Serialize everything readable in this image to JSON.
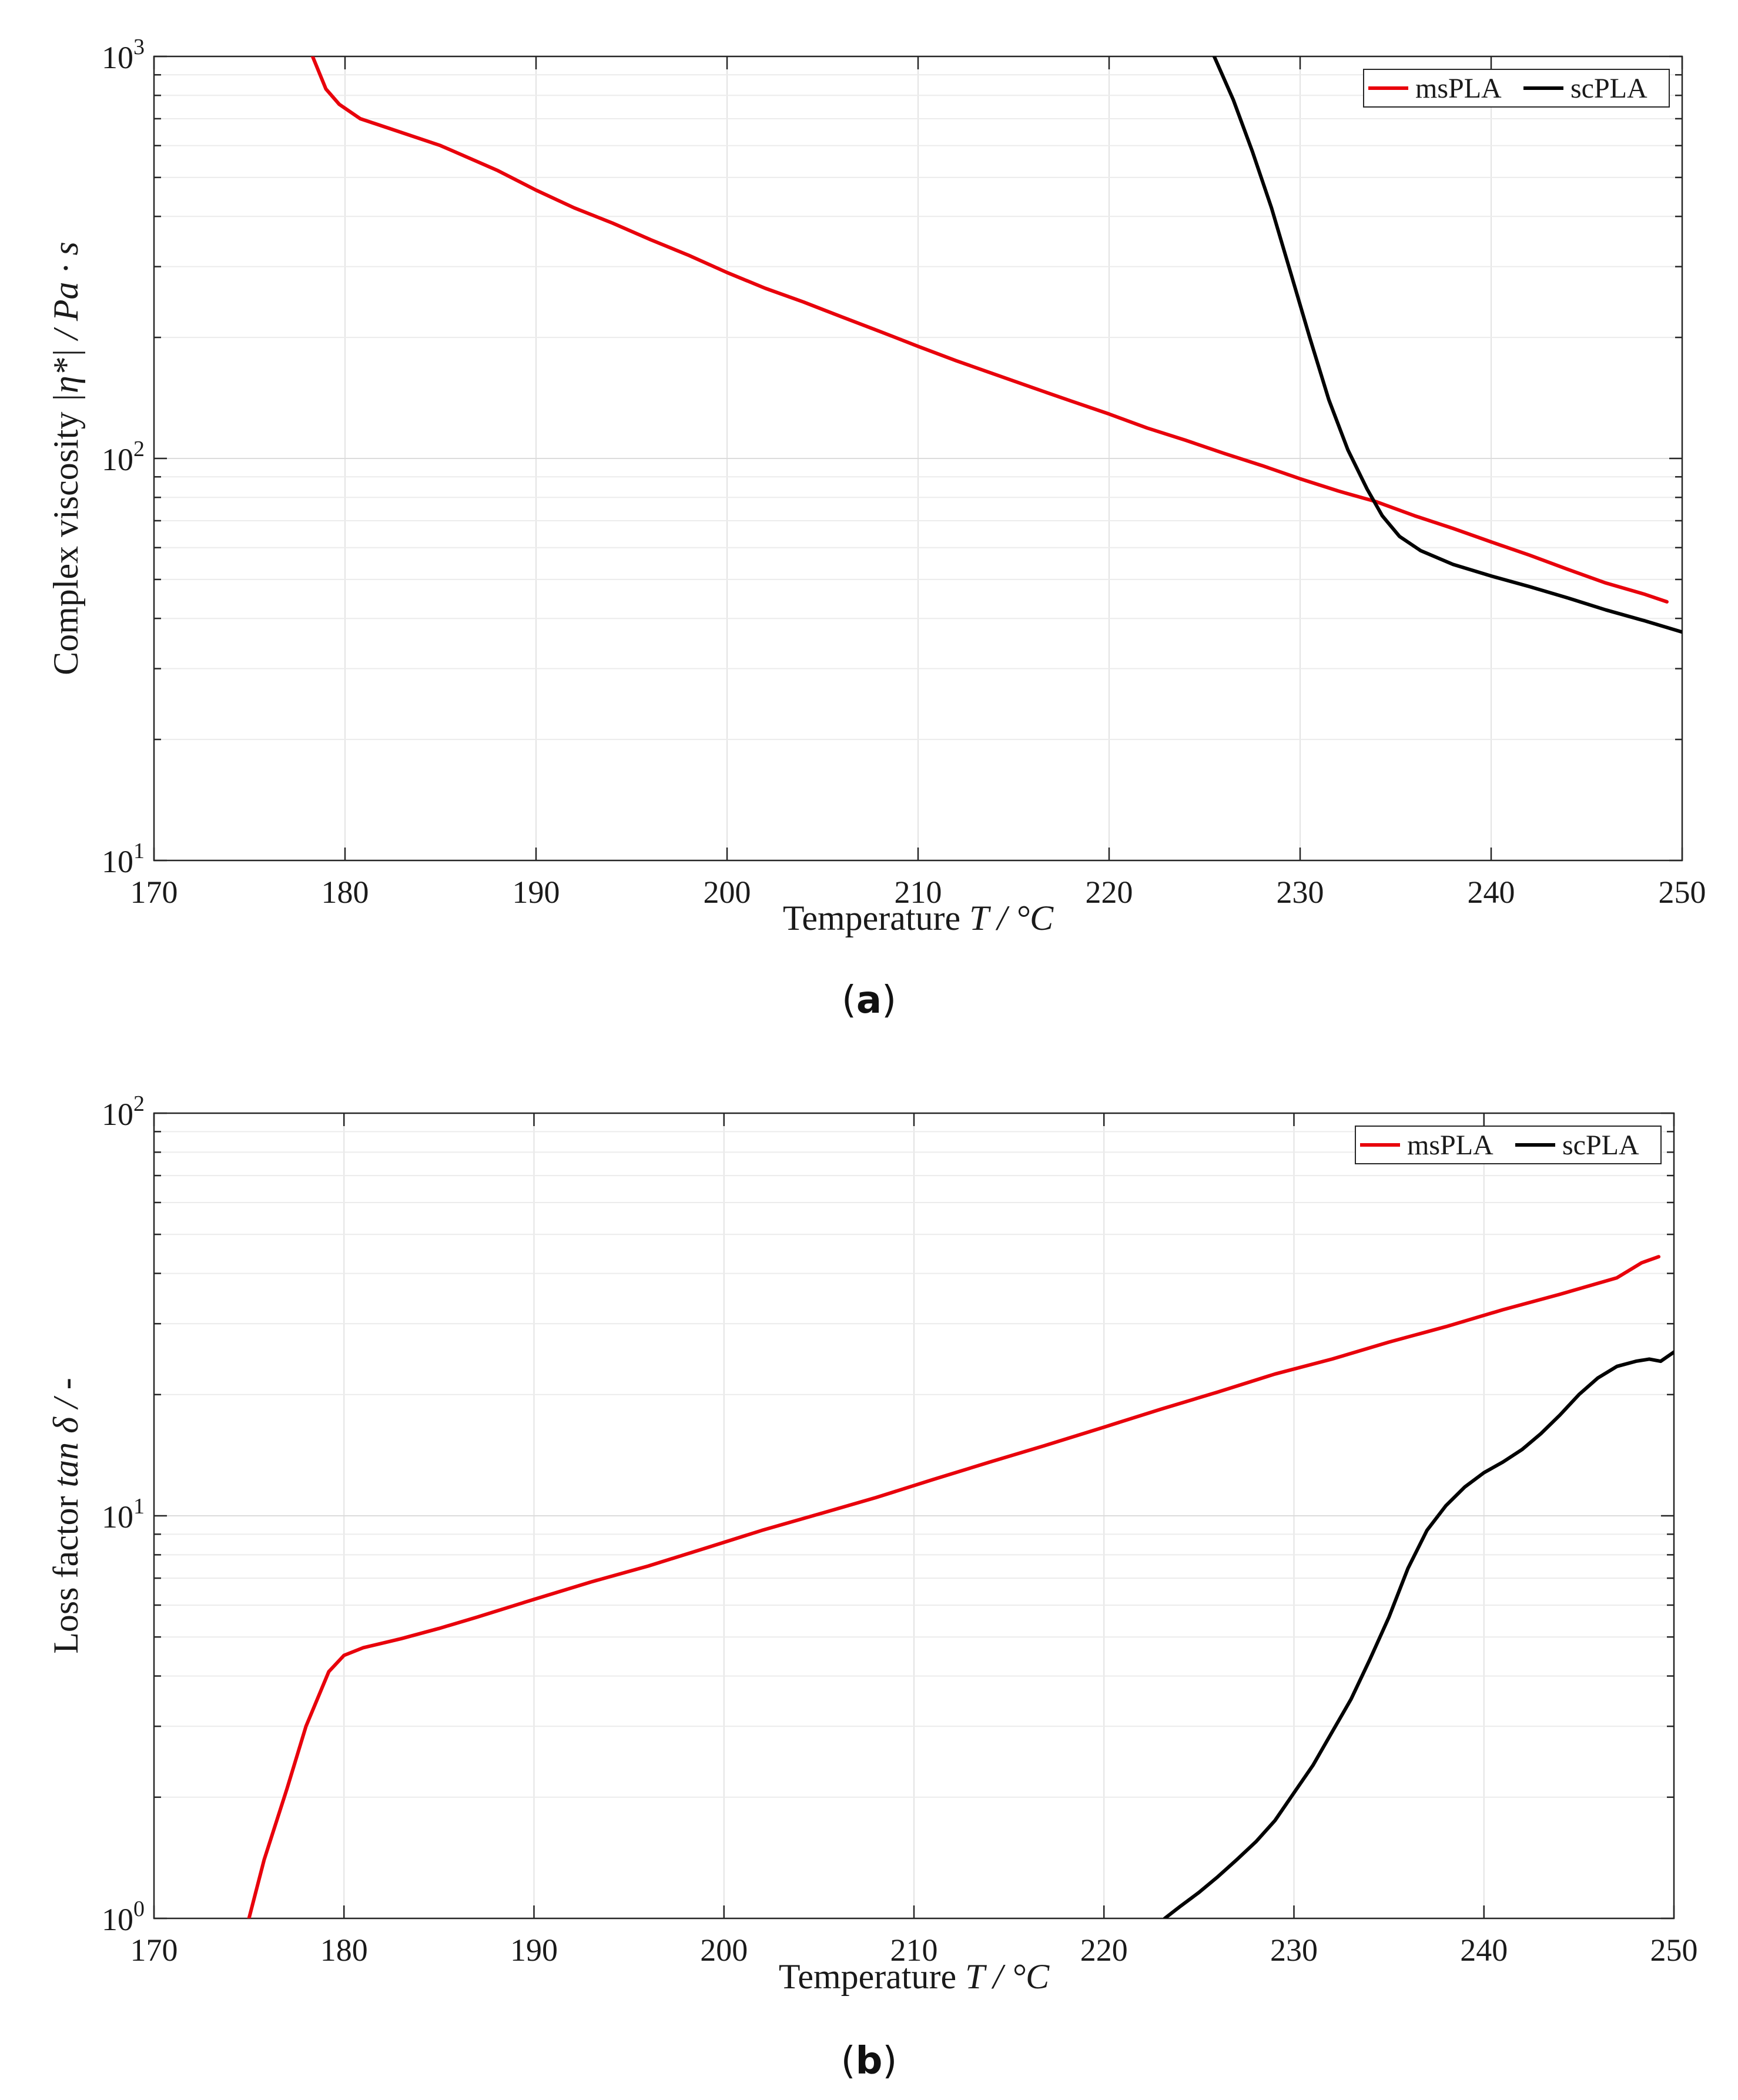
{
  "chart_data": [
    {
      "type": "line",
      "panel_label": "a",
      "xlabel": "Temperature",
      "xlabel_symbol": "T / °C",
      "ylabel": "Complex viscosity",
      "ylabel_symbol": "|η*| / Pa · s",
      "xlim": [
        170,
        250
      ],
      "ylim": [
        10,
        1000
      ],
      "yscale": "log",
      "grid": true,
      "legend_position": "top-right",
      "x_ticks": [
        170,
        180,
        190,
        200,
        210,
        220,
        230,
        240,
        250
      ],
      "y_tick_labels": [
        {
          "value": 10,
          "base": "10",
          "exp": "1"
        },
        {
          "value": 100,
          "base": "10",
          "exp": "2"
        },
        {
          "value": 1000,
          "base": "10",
          "exp": "3"
        }
      ],
      "series": [
        {
          "name": "msPLA",
          "color": "#e8000b",
          "x": [
            178.3,
            179.0,
            179.7,
            180.8,
            182,
            185,
            188,
            190,
            192,
            194,
            196,
            198,
            200,
            202,
            204,
            206,
            208,
            210,
            212,
            214,
            216,
            218,
            220,
            222,
            224,
            226,
            228,
            230,
            232,
            234,
            236,
            238,
            240,
            242,
            244,
            246,
            248,
            249.2
          ],
          "y": [
            1000,
            830,
            760,
            700,
            670,
            600,
            520,
            465,
            420,
            385,
            350,
            320,
            290,
            265,
            245,
            225,
            207,
            190,
            175,
            162,
            150,
            139,
            129,
            119,
            111,
            103,
            96,
            89,
            83,
            78,
            72,
            67,
            62,
            57.5,
            53,
            49,
            46,
            44
          ]
        },
        {
          "name": "scPLA",
          "color": "#000000",
          "x": [
            225.5,
            226.5,
            227.5,
            228.5,
            229.5,
            230.5,
            231.5,
            232.5,
            233.5,
            234.3,
            235.2,
            236.3,
            238,
            240,
            242,
            244,
            246,
            248,
            250
          ],
          "y": [
            1000,
            780,
            580,
            420,
            290,
            200,
            140,
            105,
            84,
            72,
            64,
            59,
            54.5,
            51,
            48,
            45,
            42,
            39.5,
            37
          ]
        }
      ]
    },
    {
      "type": "line",
      "panel_label": "b",
      "xlabel": "Temperature",
      "xlabel_symbol": "T / °C",
      "ylabel": "Loss factor",
      "ylabel_symbol": "tan δ / -",
      "xlim": [
        170,
        250
      ],
      "ylim": [
        1,
        100
      ],
      "yscale": "log",
      "grid": true,
      "legend_position": "top-right",
      "x_ticks": [
        170,
        180,
        190,
        200,
        210,
        220,
        230,
        240,
        250
      ],
      "y_tick_labels": [
        {
          "value": 1,
          "base": "10",
          "exp": "0"
        },
        {
          "value": 10,
          "base": "10",
          "exp": "1"
        },
        {
          "value": 100,
          "base": "10",
          "exp": "2"
        }
      ],
      "series": [
        {
          "name": "msPLA",
          "color": "#e8000b",
          "x": [
            175.0,
            175.8,
            177,
            178,
            179.2,
            180,
            181,
            183,
            185,
            187,
            190,
            193,
            196,
            199,
            202,
            205,
            208,
            211,
            214,
            217,
            220,
            223,
            226,
            229,
            232,
            235,
            238,
            241,
            244,
            247,
            248.3,
            249.2
          ],
          "y": [
            1.0,
            1.4,
            2.1,
            3.0,
            4.1,
            4.5,
            4.7,
            4.95,
            5.25,
            5.6,
            6.2,
            6.85,
            7.5,
            8.3,
            9.2,
            10.1,
            11.1,
            12.3,
            13.6,
            15.0,
            16.6,
            18.4,
            20.3,
            22.5,
            24.5,
            27.0,
            29.5,
            32.5,
            35.5,
            39.0,
            42.5,
            44.0
          ]
        },
        {
          "name": "scPLA",
          "color": "#000000",
          "x": [
            223.2,
            224,
            225,
            226,
            227,
            228,
            229,
            230,
            231,
            232,
            233,
            234,
            235,
            236,
            237,
            238,
            239,
            240,
            241,
            242,
            243,
            244,
            245,
            246,
            247,
            248,
            248.7,
            249.3,
            250
          ],
          "y": [
            1.0,
            1.07,
            1.16,
            1.27,
            1.4,
            1.55,
            1.75,
            2.05,
            2.4,
            2.9,
            3.5,
            4.4,
            5.6,
            7.4,
            9.2,
            10.6,
            11.8,
            12.8,
            13.6,
            14.6,
            16.0,
            17.8,
            20.0,
            22.0,
            23.5,
            24.2,
            24.5,
            24.2,
            25.5
          ]
        }
      ]
    }
  ]
}
